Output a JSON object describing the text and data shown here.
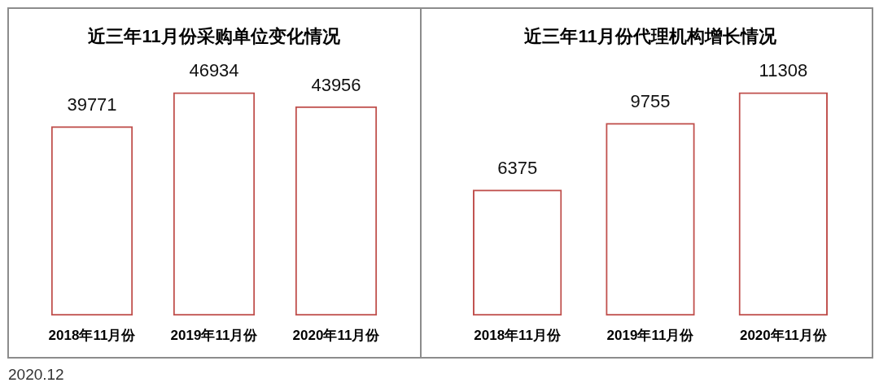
{
  "chart_data": [
    {
      "type": "bar",
      "title": "近三年11月份采购单位变化情况",
      "categories": [
        "2018年11月份",
        "2019年11月份",
        "2020年11月份"
      ],
      "values": [
        39771,
        46934,
        43956
      ],
      "color": "#c0504d",
      "data_labels": true,
      "tick_labels": "x",
      "annotations": [
        "2020.12"
      ]
    },
    {
      "type": "bar",
      "title": "近三年11月份代理机构增长情况",
      "categories": [
        "2018年11月份",
        "2019年11月份",
        "2020年11月份"
      ],
      "values": [
        6375,
        9755,
        11308
      ],
      "color": "#c0504d",
      "data_labels": true,
      "tick_labels": "x"
    }
  ]
}
